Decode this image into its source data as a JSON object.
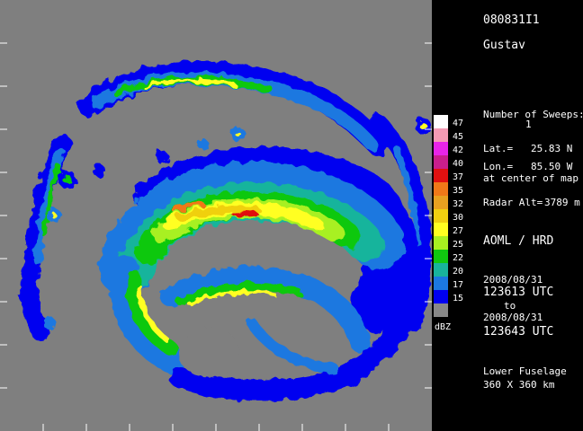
{
  "header": {
    "flight_id": "080831I1",
    "storm_name": "Gustav"
  },
  "info": {
    "sweeps_label": "Number of Sweeps:",
    "sweeps_value": "1",
    "lat_label": "Lat.=",
    "lat_value": "25.83 N",
    "lon_label": "Lon.=",
    "lon_value": "85.50 W",
    "center_note": "at center of map",
    "radar_alt_label": "Radar Alt=",
    "radar_alt_value": "3789 m",
    "org": "AOML / HRD",
    "start_date": "2008/08/31",
    "start_time": "123613 UTC",
    "to": "to",
    "end_date": "2008/08/31",
    "end_time": "123643 UTC",
    "radar_type": "Lower Fuselage",
    "map_size": "360 X 360 km"
  },
  "legend": {
    "unit": "dBZ",
    "entries": [
      {
        "label": "47",
        "color": "#ffffff"
      },
      {
        "label": "45",
        "color": "#f49ab4"
      },
      {
        "label": "42",
        "color": "#e824e8"
      },
      {
        "label": "40",
        "color": "#c81e8c"
      },
      {
        "label": "37",
        "color": "#e01010"
      },
      {
        "label": "35",
        "color": "#f07818"
      },
      {
        "label": "32",
        "color": "#e8a020"
      },
      {
        "label": "30",
        "color": "#f0d010"
      },
      {
        "label": "27",
        "color": "#ffff20"
      },
      {
        "label": "25",
        "color": "#a8f020"
      },
      {
        "label": "22",
        "color": "#10c810"
      },
      {
        "label": "20",
        "color": "#18b49c"
      },
      {
        "label": "17",
        "color": "#1c78e0"
      },
      {
        "label": "15",
        "color": "#0000f0"
      },
      {
        "label": "",
        "color": "#888888"
      }
    ]
  },
  "colors": {
    "map_background": "#7f7f7f",
    "panel_background": "#000000"
  }
}
